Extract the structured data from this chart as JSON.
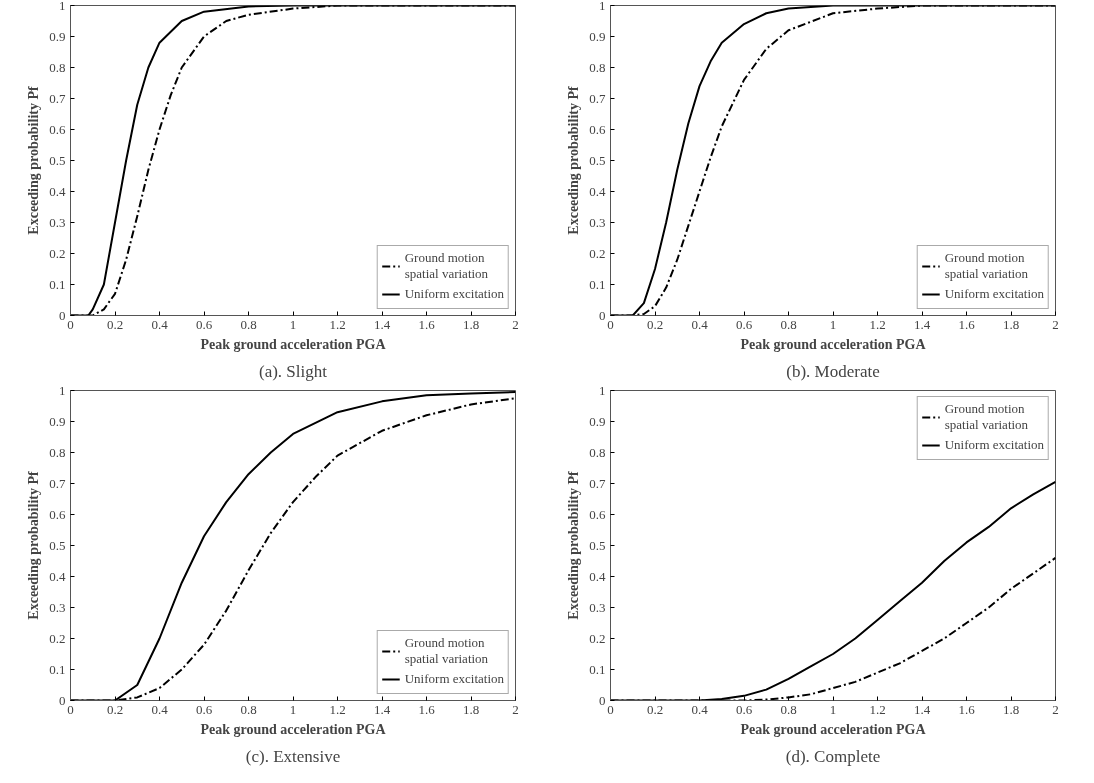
{
  "chart_data": [
    {
      "type": "line",
      "title": "(a). Slight",
      "xlabel": "Peak ground acceleration PGA",
      "ylabel": "Exceeding probability Pf",
      "xlim": [
        0,
        2
      ],
      "ylim": [
        0,
        1
      ],
      "xticks": [
        0,
        0.2,
        0.4,
        0.6,
        0.8,
        1,
        1.2,
        1.4,
        1.6,
        1.8,
        2
      ],
      "yticks": [
        0,
        0.1,
        0.2,
        0.3,
        0.4,
        0.5,
        0.6,
        0.7,
        0.8,
        0.9,
        1
      ],
      "grid": false,
      "legend": "bottom right",
      "series": [
        {
          "name": "Ground motion\nspatial variation",
          "color": "#000000",
          "line_style": "dashed",
          "x": [
            0,
            0.1,
            0.15,
            0.2,
            0.25,
            0.3,
            0.35,
            0.4,
            0.45,
            0.5,
            0.6,
            0.7,
            0.8,
            1,
            1.2,
            2
          ],
          "values": [
            0,
            0,
            0.02,
            0.07,
            0.18,
            0.32,
            0.47,
            0.6,
            0.71,
            0.8,
            0.9,
            0.95,
            0.97,
            0.99,
            1,
            1
          ]
        },
        {
          "name": "Uniform excitation",
          "color": "#000000",
          "line_style": "solid",
          "x": [
            0,
            0.08,
            0.1,
            0.15,
            0.2,
            0.25,
            0.3,
            0.35,
            0.4,
            0.5,
            0.6,
            0.8,
            1,
            2
          ],
          "values": [
            0,
            0,
            0.02,
            0.1,
            0.3,
            0.5,
            0.68,
            0.8,
            0.88,
            0.95,
            0.98,
            0.997,
            1,
            1
          ]
        }
      ]
    },
    {
      "type": "line",
      "title": "(b). Moderate",
      "xlabel": "Peak ground acceleration PGA",
      "ylabel": "Exceeding probability Pf",
      "xlim": [
        0,
        2
      ],
      "ylim": [
        0,
        1
      ],
      "xticks": [
        0,
        0.2,
        0.4,
        0.6,
        0.8,
        1,
        1.2,
        1.4,
        1.6,
        1.8,
        2
      ],
      "yticks": [
        0,
        0.1,
        0.2,
        0.3,
        0.4,
        0.5,
        0.6,
        0.7,
        0.8,
        0.9,
        1
      ],
      "grid": false,
      "legend": "bottom right",
      "series": [
        {
          "name": "Ground motion\nspatial variation",
          "color": "#000000",
          "line_style": "dashed",
          "x": [
            0,
            0.1,
            0.15,
            0.2,
            0.25,
            0.3,
            0.35,
            0.4,
            0.45,
            0.5,
            0.6,
            0.7,
            0.8,
            1,
            1.2,
            1.4,
            2
          ],
          "values": [
            0,
            0,
            0.005,
            0.03,
            0.09,
            0.18,
            0.29,
            0.4,
            0.51,
            0.61,
            0.76,
            0.86,
            0.92,
            0.975,
            0.99,
            1,
            1
          ]
        },
        {
          "name": "Uniform excitation",
          "color": "#000000",
          "line_style": "solid",
          "x": [
            0,
            0.1,
            0.15,
            0.2,
            0.25,
            0.3,
            0.35,
            0.4,
            0.45,
            0.5,
            0.6,
            0.7,
            0.8,
            1,
            2
          ],
          "values": [
            0,
            0,
            0.04,
            0.15,
            0.3,
            0.47,
            0.62,
            0.74,
            0.82,
            0.88,
            0.94,
            0.975,
            0.99,
            1,
            1
          ]
        }
      ]
    },
    {
      "type": "line",
      "title": "(c). Extensive",
      "xlabel": "Peak ground acceleration PGA",
      "ylabel": "Exceeding probability Pf",
      "xlim": [
        0,
        2
      ],
      "ylim": [
        0,
        1
      ],
      "xticks": [
        0,
        0.2,
        0.4,
        0.6,
        0.8,
        1,
        1.2,
        1.4,
        1.6,
        1.8,
        2
      ],
      "yticks": [
        0,
        0.1,
        0.2,
        0.3,
        0.4,
        0.5,
        0.6,
        0.7,
        0.8,
        0.9,
        1
      ],
      "grid": false,
      "legend": "bottom right",
      "series": [
        {
          "name": "Ground motion\nspatial variation",
          "color": "#000000",
          "line_style": "dashed",
          "x": [
            0,
            0.2,
            0.3,
            0.4,
            0.5,
            0.6,
            0.7,
            0.8,
            0.9,
            1,
            1.1,
            1.2,
            1.4,
            1.6,
            1.8,
            2
          ],
          "values": [
            0,
            0,
            0.01,
            0.04,
            0.1,
            0.18,
            0.29,
            0.42,
            0.54,
            0.64,
            0.72,
            0.79,
            0.87,
            0.92,
            0.955,
            0.975
          ]
        },
        {
          "name": "Uniform excitation",
          "color": "#000000",
          "line_style": "solid",
          "x": [
            0,
            0.2,
            0.3,
            0.4,
            0.5,
            0.6,
            0.7,
            0.8,
            0.9,
            1,
            1.2,
            1.4,
            1.6,
            1.8,
            2
          ],
          "values": [
            0,
            0,
            0.05,
            0.2,
            0.38,
            0.53,
            0.64,
            0.73,
            0.8,
            0.86,
            0.93,
            0.965,
            0.985,
            0.99,
            0.995
          ]
        }
      ]
    },
    {
      "type": "line",
      "title": "(d). Complete",
      "xlabel": "Peak ground acceleration PGA",
      "ylabel": "Exceeding probability Pf",
      "xlim": [
        0,
        2
      ],
      "ylim": [
        0,
        1
      ],
      "xticks": [
        0,
        0.2,
        0.4,
        0.6,
        0.8,
        1,
        1.2,
        1.4,
        1.6,
        1.8,
        2
      ],
      "yticks": [
        0,
        0.1,
        0.2,
        0.3,
        0.4,
        0.5,
        0.6,
        0.7,
        0.8,
        0.9,
        1
      ],
      "grid": false,
      "legend": "top right",
      "series": [
        {
          "name": "Ground motion\nspatial variation",
          "color": "#000000",
          "line_style": "dashed",
          "x": [
            0,
            0.6,
            0.7,
            0.8,
            0.9,
            1,
            1.1,
            1.2,
            1.3,
            1.4,
            1.5,
            1.6,
            1.7,
            1.8,
            1.9,
            2
          ],
          "values": [
            0,
            0,
            0.003,
            0.01,
            0.02,
            0.04,
            0.06,
            0.09,
            0.12,
            0.16,
            0.2,
            0.25,
            0.3,
            0.36,
            0.41,
            0.46
          ]
        },
        {
          "name": "Uniform excitation",
          "color": "#000000",
          "line_style": "solid",
          "x": [
            0,
            0.4,
            0.5,
            0.6,
            0.7,
            0.8,
            0.9,
            1,
            1.1,
            1.2,
            1.3,
            1.4,
            1.5,
            1.6,
            1.7,
            1.8,
            1.9,
            2
          ],
          "values": [
            0,
            0,
            0.005,
            0.015,
            0.035,
            0.07,
            0.11,
            0.15,
            0.2,
            0.26,
            0.32,
            0.38,
            0.45,
            0.51,
            0.56,
            0.62,
            0.665,
            0.705
          ]
        }
      ]
    }
  ]
}
